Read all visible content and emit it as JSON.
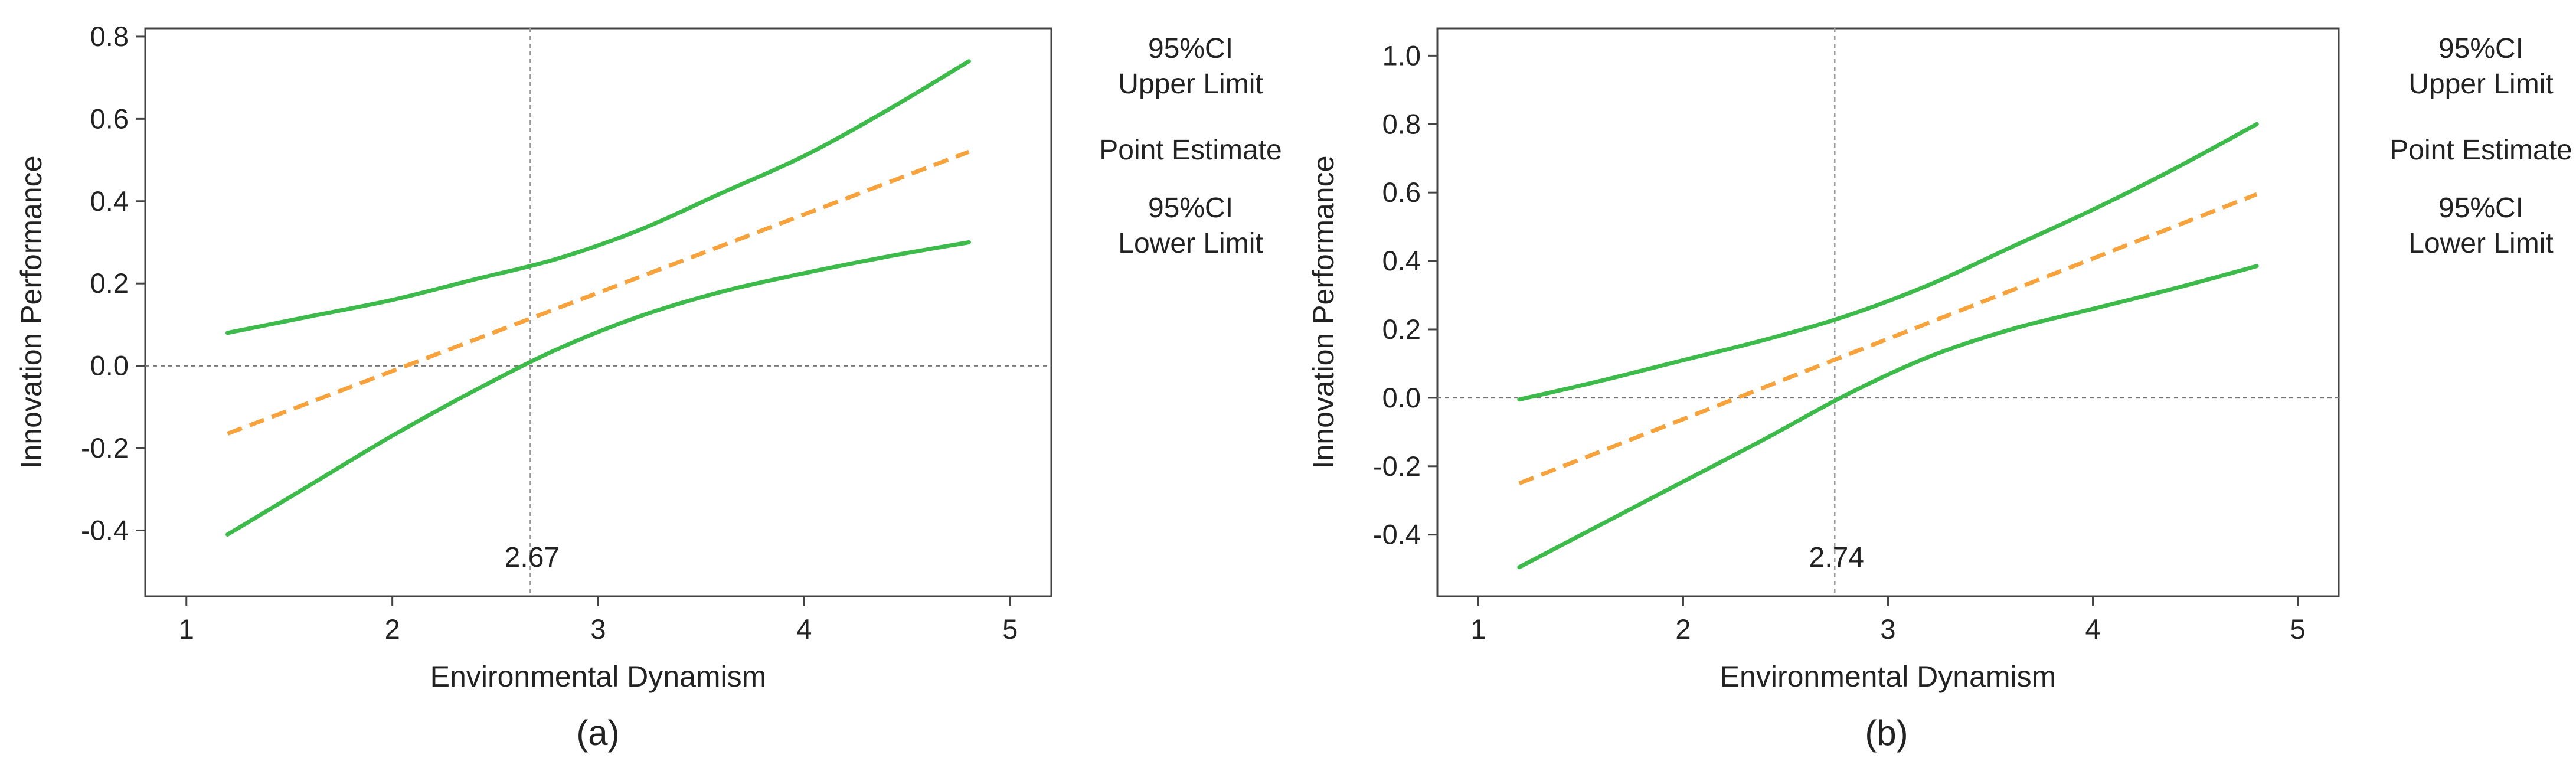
{
  "chart_data": [
    {
      "type": "line",
      "panel_label": "(a)",
      "xlabel": "Environmental Dynamism",
      "ylabel": "Innovation Performance",
      "xlim": [
        0.8,
        5.2
      ],
      "ylim": [
        -0.56,
        0.82
      ],
      "xticks": [
        "1",
        "2",
        "3",
        "4",
        "5"
      ],
      "yticks": [
        "-0.4",
        "-0.2",
        "0.0",
        "0.2",
        "0.4",
        "0.6",
        "0.8"
      ],
      "ref_x": 2.67,
      "ref_x_label": "2.67",
      "ref_y": 0,
      "legend": [
        {
          "label_lines": [
            "95%CI",
            "Upper Limit"
          ],
          "series": "upper"
        },
        {
          "label_lines": [
            "Point Estimate"
          ],
          "series": "point"
        },
        {
          "label_lines": [
            "95%CI",
            "Lower Limit"
          ],
          "series": "lower"
        }
      ],
      "series": [
        {
          "key": "upper",
          "name": "95%CI Upper Limit",
          "color": "#3dbb4a",
          "dashed": false,
          "x": [
            1.2,
            1.6,
            2.0,
            2.4,
            2.8,
            3.2,
            3.6,
            4.0,
            4.4,
            4.8
          ],
          "y": [
            0.08,
            0.12,
            0.16,
            0.21,
            0.26,
            0.33,
            0.42,
            0.51,
            0.62,
            0.74
          ]
        },
        {
          "key": "point",
          "name": "Point Estimate",
          "color": "#f7a23a",
          "dashed": true,
          "x": [
            1.2,
            4.8
          ],
          "y": [
            -0.165,
            0.52
          ]
        },
        {
          "key": "lower",
          "name": "95%CI Lower Limit",
          "color": "#3dbb4a",
          "dashed": false,
          "x": [
            1.2,
            1.6,
            2.0,
            2.4,
            2.8,
            3.2,
            3.6,
            4.0,
            4.4,
            4.8
          ],
          "y": [
            -0.41,
            -0.29,
            -0.17,
            -0.06,
            0.04,
            0.12,
            0.18,
            0.225,
            0.265,
            0.3
          ]
        }
      ]
    },
    {
      "type": "line",
      "panel_label": "(b)",
      "xlabel": "Environmental Dynamism",
      "ylabel": "Innovation Performance",
      "xlim": [
        0.8,
        5.2
      ],
      "ylim": [
        -0.58,
        1.08
      ],
      "xticks": [
        "1",
        "2",
        "3",
        "4",
        "5"
      ],
      "yticks": [
        "-0.4",
        "-0.2",
        "0.0",
        "0.2",
        "0.4",
        "0.6",
        "0.8",
        "1.0"
      ],
      "ref_x": 2.74,
      "ref_x_label": "2.74",
      "ref_y": 0,
      "legend": [
        {
          "label_lines": [
            "95%CI",
            "Upper Limit"
          ],
          "series": "upper"
        },
        {
          "label_lines": [
            "Point Estimate"
          ],
          "series": "point"
        },
        {
          "label_lines": [
            "95%CI",
            "Lower Limit"
          ],
          "series": "lower"
        }
      ],
      "series": [
        {
          "key": "upper",
          "name": "95%CI Upper Limit",
          "color": "#3dbb4a",
          "dashed": false,
          "x": [
            1.2,
            1.6,
            2.0,
            2.4,
            2.8,
            3.2,
            3.6,
            4.0,
            4.4,
            4.8
          ],
          "y": [
            -0.005,
            0.05,
            0.11,
            0.17,
            0.24,
            0.33,
            0.44,
            0.55,
            0.67,
            0.8
          ]
        },
        {
          "key": "point",
          "name": "Point Estimate",
          "color": "#f7a23a",
          "dashed": true,
          "x": [
            1.2,
            4.8
          ],
          "y": [
            -0.25,
            0.595
          ]
        },
        {
          "key": "lower",
          "name": "95%CI Lower Limit",
          "color": "#3dbb4a",
          "dashed": false,
          "x": [
            1.2,
            1.6,
            2.0,
            2.4,
            2.8,
            3.2,
            3.6,
            4.0,
            4.4,
            4.8
          ],
          "y": [
            -0.495,
            -0.37,
            -0.245,
            -0.12,
            0.01,
            0.12,
            0.2,
            0.26,
            0.32,
            0.385
          ]
        }
      ]
    }
  ]
}
